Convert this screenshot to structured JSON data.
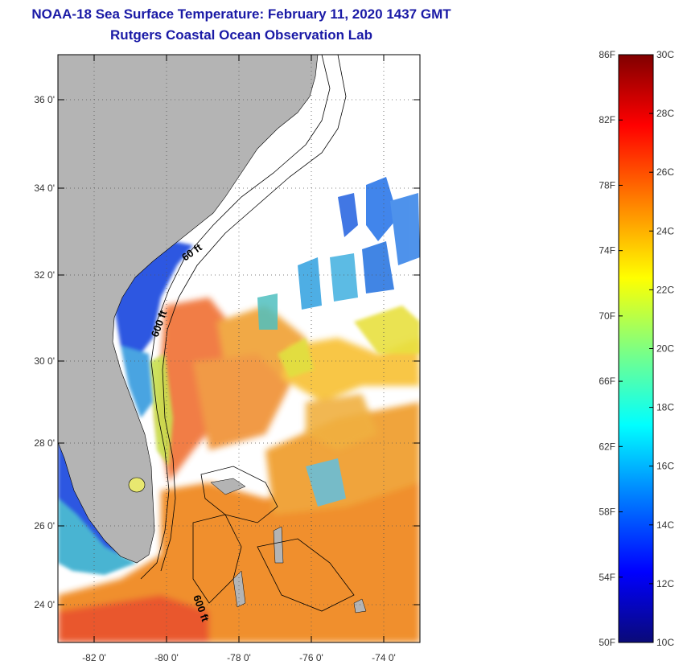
{
  "titles": {
    "line1": "NOAA-18 Sea Surface Temperature:  February 11, 2020 1437 GMT",
    "line2": "Rutgers Coastal Ocean Observation Lab"
  },
  "map": {
    "lat_ticks": [
      "24 0'",
      "26 0'",
      "28 0'",
      "30 0'",
      "32 0'",
      "34 0'",
      "36 0'"
    ],
    "lon_ticks": [
      "-82 0'",
      "-80 0'",
      "-78 0'",
      "-76 0'",
      "-74 0'"
    ],
    "contour_labels": [
      "60 ft",
      "600 ft",
      "600 ft"
    ],
    "colors": {
      "land": "#b4b4b4",
      "cloud": "#ffffff"
    }
  },
  "colorbar": {
    "fahrenheit": [
      "50F",
      "54F",
      "58F",
      "62F",
      "66F",
      "70F",
      "74F",
      "78F",
      "82F",
      "86F"
    ],
    "celsius": [
      "10C",
      "12C",
      "14C",
      "16C",
      "18C",
      "20C",
      "22C",
      "24C",
      "26C",
      "28C",
      "30C"
    ],
    "colors": [
      "#0a0a78",
      "#0000ff",
      "#0080ff",
      "#00ffff",
      "#80ff80",
      "#ffff00",
      "#ff8000",
      "#ff0000",
      "#800000"
    ]
  }
}
